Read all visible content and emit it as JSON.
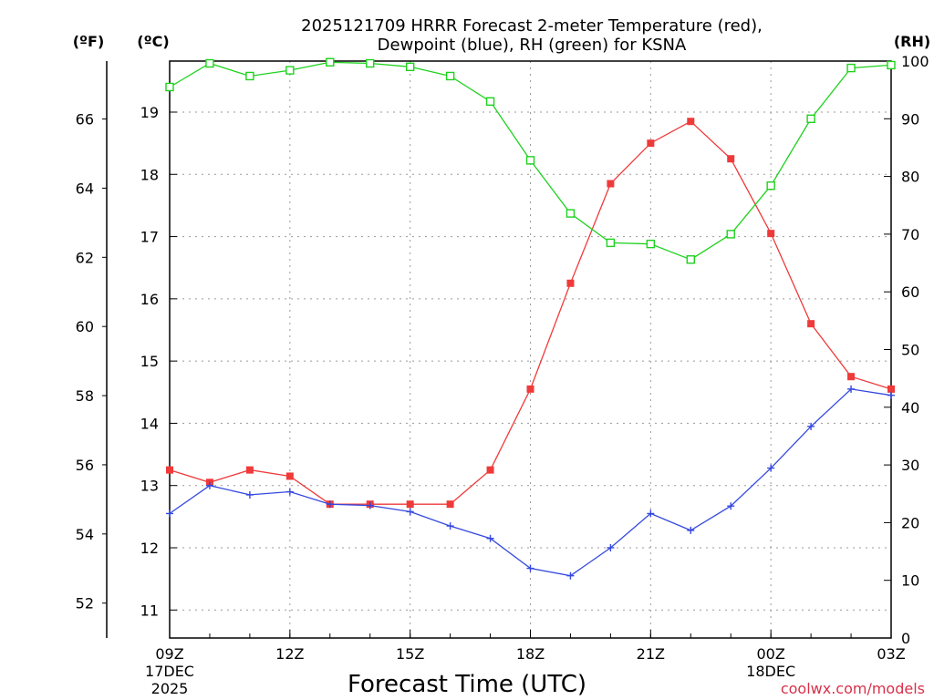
{
  "chart_data": {
    "type": "line",
    "title_line1": "2025121709 HRRR Forecast 2-meter Temperature (red),",
    "title_line2": "Dewpoint (blue), RH (green) for KSNA",
    "xlabel": "Forecast Time (UTC)",
    "credit": "coolwx.com/models",
    "units": {
      "fahrenheit": "(ºF)",
      "celsius": "(ºC)",
      "rh": "(RH)"
    },
    "x_hours": [
      0,
      1,
      2,
      3,
      4,
      5,
      6,
      7,
      8,
      9,
      10,
      11,
      12,
      13,
      14,
      15,
      16,
      17,
      18
    ],
    "x_ticks": [
      {
        "hour": 0,
        "label": "09Z",
        "sub1": "17DEC",
        "sub2": "2025"
      },
      {
        "hour": 3,
        "label": "12Z",
        "sub1": "",
        "sub2": ""
      },
      {
        "hour": 6,
        "label": "15Z",
        "sub1": "",
        "sub2": ""
      },
      {
        "hour": 9,
        "label": "18Z",
        "sub1": "",
        "sub2": ""
      },
      {
        "hour": 12,
        "label": "21Z",
        "sub1": "",
        "sub2": ""
      },
      {
        "hour": 15,
        "label": "00Z",
        "sub1": "18DEC",
        "sub2": ""
      },
      {
        "hour": 18,
        "label": "03Z",
        "sub1": "",
        "sub2": ""
      }
    ],
    "celsius_axis": {
      "min": 10.55,
      "max": 19.82,
      "ticks": [
        11,
        12,
        13,
        14,
        15,
        16,
        17,
        18,
        19
      ]
    },
    "fahrenheit_ticks": [
      52,
      54,
      56,
      58,
      60,
      62,
      64,
      66
    ],
    "rh_axis": {
      "min": 0,
      "max": 100,
      "ticks": [
        0,
        10,
        20,
        30,
        40,
        50,
        60,
        70,
        80,
        90,
        100
      ]
    },
    "series": [
      {
        "name": "Temperature",
        "color": "#ef3a3a",
        "marker": "filled-square",
        "axis": "celsius",
        "values": [
          13.25,
          13.05,
          13.25,
          13.15,
          12.7,
          12.7,
          12.7,
          12.7,
          13.25,
          14.55,
          16.25,
          17.85,
          18.5,
          18.85,
          18.25,
          17.05,
          15.6,
          14.75,
          14.55
        ]
      },
      {
        "name": "Dewpoint",
        "color": "#3448e0",
        "marker": "plus",
        "axis": "celsius",
        "values": [
          12.55,
          13.0,
          12.85,
          12.9,
          12.7,
          12.68,
          12.58,
          12.35,
          12.15,
          11.67,
          11.55,
          12.0,
          12.55,
          12.28,
          12.67,
          13.28,
          13.95,
          14.55,
          14.45
        ]
      },
      {
        "name": "RH",
        "color": "#1ed21e",
        "marker": "open-square",
        "axis": "rh",
        "values": [
          95.5,
          99.6,
          97.4,
          98.4,
          99.8,
          99.6,
          99.0,
          97.4,
          93.0,
          82.8,
          73.6,
          68.5,
          68.3,
          65.6,
          70.0,
          78.4,
          90.0,
          98.8,
          99.3
        ]
      }
    ],
    "grid": "dotted"
  }
}
